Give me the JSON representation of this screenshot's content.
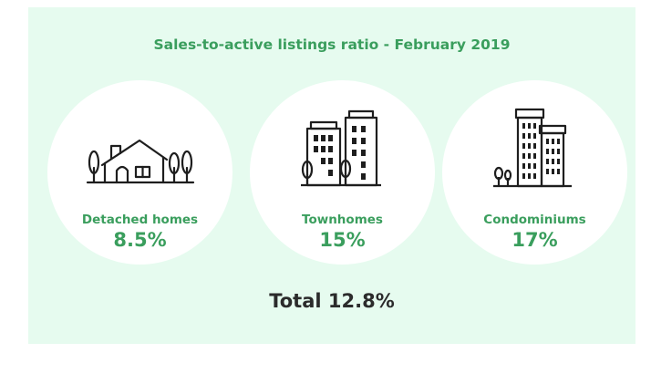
{
  "title": "Sales-to-active listings ratio - February 2019",
  "categories": [
    {
      "label": "Detached homes",
      "value": "8.5%",
      "icon": "house-icon"
    },
    {
      "label": "Townhomes",
      "value": "15%",
      "icon": "townhouse-buildings-icon"
    },
    {
      "label": "Condominiums",
      "value": "17%",
      "icon": "condo-tower-icon"
    }
  ],
  "total": "Total 12.8%",
  "colors": {
    "accent": "#3a9e5d",
    "panel_bg": "#e6fbef",
    "total_text": "#2b2b2b"
  }
}
